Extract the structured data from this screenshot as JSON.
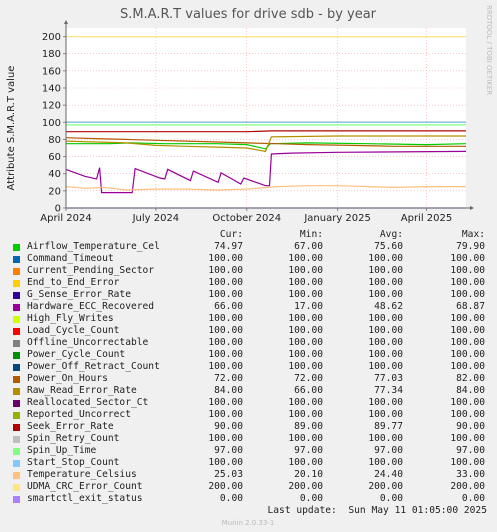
{
  "title": "S.M.A.R.T values for drive sdb - by year",
  "side_label": "RRDTOOL / TOBI OETIKER",
  "footer_text": "Munin 2.0.33-1",
  "last_update": "Last update:  Sun May 11 01:05:00 2025",
  "legend_headers": {
    "cur": "Cur:",
    "min": "Min:",
    "avg": "Avg:",
    "max": "Max:"
  },
  "chart_data": {
    "type": "line",
    "title": "S.M.A.R.T values for drive sdb - by year",
    "ylabel": "Attribute S.M.A.R.T value",
    "xlabel": "",
    "ylim": [
      0,
      210
    ],
    "yticks": [
      0,
      20,
      40,
      60,
      80,
      100,
      120,
      140,
      160,
      180,
      200
    ],
    "xlim": [
      "2024-04-01",
      "2025-05-11"
    ],
    "xticks": [
      {
        "date": "2024-04-01",
        "label": "April 2024"
      },
      {
        "date": "2024-07-01",
        "label": "July 2024"
      },
      {
        "date": "2024-10-01",
        "label": "October 2024"
      },
      {
        "date": "2025-01-01",
        "label": "January 2025"
      },
      {
        "date": "2025-04-01",
        "label": "April 2025"
      }
    ],
    "grid": true,
    "series": [
      {
        "name": "Airflow_Temperature_Cel",
        "color": "#00cc00",
        "cur": "74.97",
        "min": "67.00",
        "avg": "75.60",
        "max": "79.90",
        "points": [
          [
            "2024-04-01",
            75
          ],
          [
            "2024-05-15",
            75
          ],
          [
            "2024-06-05",
            76
          ],
          [
            "2024-07-10",
            75
          ],
          [
            "2024-09-01",
            75
          ],
          [
            "2024-10-01",
            74
          ],
          [
            "2024-10-20",
            69
          ],
          [
            "2024-10-25",
            75
          ],
          [
            "2024-12-01",
            76
          ],
          [
            "2025-02-01",
            75
          ],
          [
            "2025-04-01",
            74
          ],
          [
            "2025-05-11",
            75
          ]
        ]
      },
      {
        "name": "Command_Timeout",
        "color": "#0066b3",
        "cur": "100.00",
        "min": "100.00",
        "avg": "100.00",
        "max": "100.00",
        "points": [
          [
            "2024-04-01",
            100
          ],
          [
            "2025-05-11",
            100
          ]
        ]
      },
      {
        "name": "Current_Pending_Sector",
        "color": "#ff8000",
        "cur": "100.00",
        "min": "100.00",
        "avg": "100.00",
        "max": "100.00",
        "points": [
          [
            "2024-04-01",
            100
          ],
          [
            "2025-05-11",
            100
          ]
        ]
      },
      {
        "name": "End_to_End_Error",
        "color": "#ffcc00",
        "cur": "100.00",
        "min": "100.00",
        "avg": "100.00",
        "max": "100.00",
        "points": [
          [
            "2024-04-01",
            100
          ],
          [
            "2025-05-11",
            100
          ]
        ]
      },
      {
        "name": "G_Sense_Error_Rate",
        "color": "#330099",
        "cur": "100.00",
        "min": "100.00",
        "avg": "100.00",
        "max": "100.00",
        "points": [
          [
            "2024-04-01",
            100
          ],
          [
            "2025-05-11",
            100
          ]
        ]
      },
      {
        "name": "Hardware_ECC_Recovered",
        "color": "#990099",
        "cur": "66.00",
        "min": "17.00",
        "avg": "48.62",
        "max": "68.87",
        "points": [
          [
            "2024-04-01",
            45
          ],
          [
            "2024-04-20",
            37
          ],
          [
            "2024-05-02",
            34
          ],
          [
            "2024-05-05",
            47
          ],
          [
            "2024-05-07",
            18
          ],
          [
            "2024-06-07",
            18
          ],
          [
            "2024-06-10",
            46
          ],
          [
            "2024-07-05",
            35
          ],
          [
            "2024-07-10",
            34
          ],
          [
            "2024-07-13",
            45
          ],
          [
            "2024-08-05",
            32
          ],
          [
            "2024-08-08",
            43
          ],
          [
            "2024-09-02",
            30
          ],
          [
            "2024-09-05",
            41
          ],
          [
            "2024-09-25",
            28
          ],
          [
            "2024-09-28",
            35
          ],
          [
            "2024-10-20",
            26
          ],
          [
            "2024-10-24",
            26
          ],
          [
            "2024-10-26",
            63
          ],
          [
            "2024-11-15",
            64
          ],
          [
            "2025-01-01",
            65
          ],
          [
            "2025-05-11",
            66
          ]
        ]
      },
      {
        "name": "High_Fly_Writes",
        "color": "#ccff00",
        "cur": "100.00",
        "min": "100.00",
        "avg": "100.00",
        "max": "100.00",
        "points": [
          [
            "2024-04-01",
            100
          ],
          [
            "2025-05-11",
            100
          ]
        ]
      },
      {
        "name": "Load_Cycle_Count",
        "color": "#ff0000",
        "cur": "100.00",
        "min": "100.00",
        "avg": "100.00",
        "max": "100.00",
        "points": [
          [
            "2024-04-01",
            100
          ],
          [
            "2025-05-11",
            100
          ]
        ]
      },
      {
        "name": "Offline_Uncorrectable",
        "color": "#808080",
        "cur": "100.00",
        "min": "100.00",
        "avg": "100.00",
        "max": "100.00",
        "points": [
          [
            "2024-04-01",
            100
          ],
          [
            "2025-05-11",
            100
          ]
        ]
      },
      {
        "name": "Power_Cycle_Count",
        "color": "#008f00",
        "cur": "100.00",
        "min": "100.00",
        "avg": "100.00",
        "max": "100.00",
        "points": [
          [
            "2024-04-01",
            100
          ],
          [
            "2025-05-11",
            100
          ]
        ]
      },
      {
        "name": "Power_Off_Retract_Count",
        "color": "#00487d",
        "cur": "100.00",
        "min": "100.00",
        "avg": "100.00",
        "max": "100.00",
        "points": [
          [
            "2024-04-01",
            100
          ],
          [
            "2025-05-11",
            100
          ]
        ]
      },
      {
        "name": "Power_On_Hours",
        "color": "#b35a00",
        "cur": "72.00",
        "min": "72.00",
        "avg": "77.03",
        "max": "82.00",
        "points": [
          [
            "2024-04-01",
            82
          ],
          [
            "2024-05-01",
            81
          ],
          [
            "2024-06-01",
            80
          ],
          [
            "2024-07-01",
            79
          ],
          [
            "2024-08-01",
            78
          ],
          [
            "2024-09-01",
            77
          ],
          [
            "2024-10-01",
            76
          ],
          [
            "2024-11-01",
            75
          ],
          [
            "2024-12-01",
            74
          ],
          [
            "2025-01-15",
            73
          ],
          [
            "2025-03-01",
            72
          ],
          [
            "2025-05-11",
            72
          ]
        ]
      },
      {
        "name": "Raw_Read_Error_Rate",
        "color": "#b38f00",
        "cur": "84.00",
        "min": "66.00",
        "avg": "77.34",
        "max": "84.00",
        "points": [
          [
            "2024-04-01",
            78
          ],
          [
            "2024-05-01",
            77
          ],
          [
            "2024-06-01",
            76
          ],
          [
            "2024-07-01",
            73
          ],
          [
            "2024-08-01",
            72
          ],
          [
            "2024-09-01",
            71
          ],
          [
            "2024-10-01",
            70
          ],
          [
            "2024-10-20",
            66
          ],
          [
            "2024-10-26",
            83
          ],
          [
            "2025-01-01",
            84
          ],
          [
            "2025-05-11",
            84
          ]
        ]
      },
      {
        "name": "Reallocated_Sector_Ct",
        "color": "#6b006b",
        "cur": "100.00",
        "min": "100.00",
        "avg": "100.00",
        "max": "100.00",
        "points": [
          [
            "2024-04-01",
            100
          ],
          [
            "2025-05-11",
            100
          ]
        ]
      },
      {
        "name": "Reported_Uncorrect",
        "color": "#8fb300",
        "cur": "100.00",
        "min": "100.00",
        "avg": "100.00",
        "max": "100.00",
        "points": [
          [
            "2024-04-01",
            100
          ],
          [
            "2025-05-11",
            100
          ]
        ]
      },
      {
        "name": "Seek_Error_Rate",
        "color": "#b30000",
        "cur": "90.00",
        "min": "89.00",
        "avg": "89.77",
        "max": "90.00",
        "points": [
          [
            "2024-04-01",
            89
          ],
          [
            "2024-10-01",
            89
          ],
          [
            "2024-10-26",
            90
          ],
          [
            "2025-05-11",
            90
          ]
        ]
      },
      {
        "name": "Spin_Retry_Count",
        "color": "#bebebe",
        "cur": "100.00",
        "min": "100.00",
        "avg": "100.00",
        "max": "100.00",
        "points": [
          [
            "2024-04-01",
            100
          ],
          [
            "2025-05-11",
            100
          ]
        ]
      },
      {
        "name": "Spin_Up_Time",
        "color": "#80ff80",
        "cur": "97.00",
        "min": "97.00",
        "avg": "97.00",
        "max": "97.00",
        "points": [
          [
            "2024-04-01",
            97
          ],
          [
            "2025-05-11",
            97
          ]
        ]
      },
      {
        "name": "Start_Stop_Count",
        "color": "#80c9ff",
        "cur": "100.00",
        "min": "100.00",
        "avg": "100.00",
        "max": "100.00",
        "points": [
          [
            "2024-04-01",
            100
          ],
          [
            "2025-05-11",
            100
          ]
        ]
      },
      {
        "name": "Temperature_Celsius",
        "color": "#ffc080",
        "cur": "25.03",
        "min": "20.10",
        "avg": "24.40",
        "max": "33.00",
        "points": [
          [
            "2024-04-01",
            25
          ],
          [
            "2024-04-20",
            23
          ],
          [
            "2024-05-10",
            24
          ],
          [
            "2024-06-01",
            21
          ],
          [
            "2024-07-01",
            22
          ],
          [
            "2024-08-01",
            22
          ],
          [
            "2024-09-01",
            21
          ],
          [
            "2024-10-01",
            22
          ],
          [
            "2024-11-01",
            25
          ],
          [
            "2024-12-01",
            26
          ],
          [
            "2025-01-01",
            26
          ],
          [
            "2025-02-01",
            25
          ],
          [
            "2025-03-01",
            24
          ],
          [
            "2025-04-01",
            25
          ],
          [
            "2025-05-11",
            25
          ]
        ]
      },
      {
        "name": "UDMA_CRC_Error_Count",
        "color": "#ffe680",
        "cur": "200.00",
        "min": "200.00",
        "avg": "200.00",
        "max": "200.00",
        "points": [
          [
            "2024-04-01",
            200
          ],
          [
            "2025-05-11",
            200
          ]
        ]
      },
      {
        "name": "smartctl_exit_status",
        "color": "#aa80ff",
        "cur": "0.00",
        "min": "0.00",
        "avg": "0.00",
        "max": "0.00",
        "points": [
          [
            "2024-04-01",
            0
          ],
          [
            "2025-05-11",
            0
          ]
        ]
      }
    ]
  }
}
